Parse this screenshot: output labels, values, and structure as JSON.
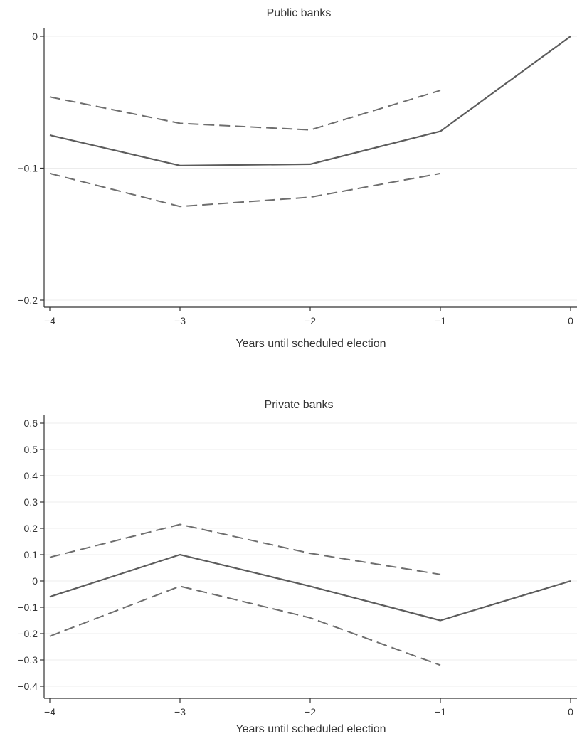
{
  "chart_data": [
    {
      "type": "line",
      "title": "Public banks",
      "xlabel": "Years until scheduled election",
      "ylabel": "",
      "x_ticks": [
        -4,
        -3,
        -2,
        -1,
        0
      ],
      "x_tick_labels": [
        "−4",
        "−3",
        "−2",
        "−1",
        "0"
      ],
      "xlim": [
        -4,
        0
      ],
      "y_ticks": [
        -0.2,
        -0.1,
        0
      ],
      "y_tick_labels": [
        "−0.2",
        "−0.1",
        "0"
      ],
      "ylim": [
        -0.2,
        0
      ],
      "grid": true,
      "series": [
        {
          "style": "solid",
          "color": "#5c5c5c",
          "x": [
            -4,
            -3,
            -2,
            -1,
            0
          ],
          "y": [
            -0.075,
            -0.098,
            -0.097,
            -0.072,
            0
          ]
        },
        {
          "style": "dashed",
          "color": "#6e6e6e",
          "x": [
            -4,
            -3,
            -2,
            -1
          ],
          "y": [
            -0.046,
            -0.066,
            -0.071,
            -0.041
          ]
        },
        {
          "style": "dashed",
          "color": "#6e6e6e",
          "x": [
            -4,
            -3,
            -2,
            -1
          ],
          "y": [
            -0.104,
            -0.129,
            -0.122,
            -0.104
          ]
        }
      ]
    },
    {
      "type": "line",
      "title": "Private banks",
      "xlabel": "Years until scheduled election",
      "ylabel": "",
      "x_ticks": [
        -4,
        -3,
        -2,
        -1,
        0
      ],
      "x_tick_labels": [
        "−4",
        "−3",
        "−2",
        "−1",
        "0"
      ],
      "xlim": [
        -4,
        0
      ],
      "y_ticks": [
        -0.4,
        -0.3,
        -0.2,
        -0.1,
        0,
        0.1,
        0.2,
        0.3,
        0.4,
        0.5,
        0.6
      ],
      "y_tick_labels": [
        "−0.4",
        "−0.3",
        "−0.2",
        "−0.1",
        "0",
        "0.1",
        "0.2",
        "0.3",
        "0.4",
        "0.5",
        "0.6"
      ],
      "ylim": [
        -0.4,
        0.6
      ],
      "grid": true,
      "series": [
        {
          "style": "solid",
          "color": "#5c5c5c",
          "x": [
            -4,
            -3,
            -2,
            -1,
            0
          ],
          "y": [
            -0.06,
            0.1,
            -0.02,
            -0.15,
            0
          ]
        },
        {
          "style": "dashed",
          "color": "#6e6e6e",
          "x": [
            -4,
            -3,
            -2,
            -1
          ],
          "y": [
            0.09,
            0.215,
            0.105,
            0.025
          ]
        },
        {
          "style": "dashed",
          "color": "#6e6e6e",
          "x": [
            -4,
            -3,
            -2,
            -1
          ],
          "y": [
            -0.21,
            -0.02,
            -0.14,
            -0.32
          ]
        }
      ]
    }
  ]
}
